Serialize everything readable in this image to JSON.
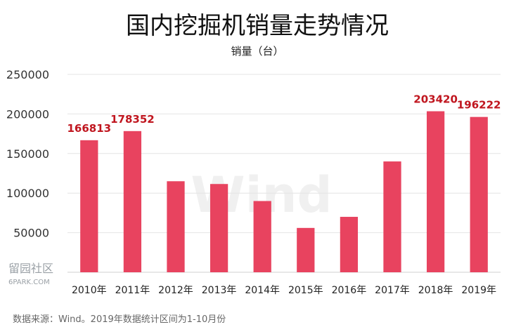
{
  "chart_data": {
    "type": "bar",
    "title": "国内挖掘机销量走势情况",
    "subtitle": "销量（台）",
    "categories": [
      "2010年",
      "2011年",
      "2012年",
      "2013年",
      "2014年",
      "2015年",
      "2016年",
      "2017年",
      "2018年",
      "2019年"
    ],
    "values": [
      166813,
      178352,
      115000,
      111500,
      90000,
      56000,
      70000,
      140000,
      203420,
      196222
    ],
    "data_labels": [
      "166813",
      "178352",
      "",
      "",
      "",
      "",
      "",
      "",
      "203420",
      "196222"
    ],
    "ylim": [
      0,
      250000
    ],
    "yticks": [
      "250000",
      "200000",
      "150000",
      "100000",
      "50000"
    ],
    "grid": true,
    "bar_color": "#e8435f",
    "label_color": "#c0161f"
  },
  "watermark": "Wind",
  "source_note": "数据来源：Wind。2019年数据统计区间为1-10月份",
  "site_logo": "留园社区",
  "site_url": "6PARK.COM"
}
